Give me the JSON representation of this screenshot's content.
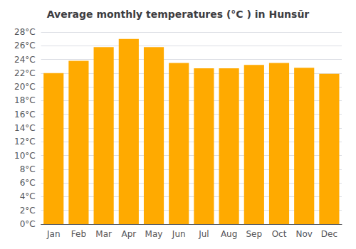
{
  "chart_data": {
    "type": "bar",
    "title": "Average monthly temperatures (°C ) in Hunsūr",
    "categories": [
      "Jan",
      "Feb",
      "Mar",
      "Apr",
      "May",
      "Jun",
      "Jul",
      "Aug",
      "Sep",
      "Oct",
      "Nov",
      "Dec"
    ],
    "values": [
      22.0,
      23.8,
      25.8,
      27.0,
      25.8,
      23.5,
      22.7,
      22.7,
      23.2,
      23.5,
      22.8,
      21.9
    ],
    "color": "#FFAA00",
    "ylim": [
      0,
      28
    ],
    "yticks": [
      {
        "value": 0,
        "label": "0°C"
      },
      {
        "value": 2,
        "label": "2°C"
      },
      {
        "value": 4,
        "label": "4°C"
      },
      {
        "value": 6,
        "label": "6°C"
      },
      {
        "value": 8,
        "label": "8°C"
      },
      {
        "value": 10,
        "label": "10°C"
      },
      {
        "value": 12,
        "label": "12°C"
      },
      {
        "value": 14,
        "label": "14°C"
      },
      {
        "value": 16,
        "label": "16°C"
      },
      {
        "value": 18,
        "label": "18°C"
      },
      {
        "value": 20,
        "label": "20°C"
      },
      {
        "value": 22,
        "label": "22°C"
      },
      {
        "value": 24,
        "label": "24°C"
      },
      {
        "value": 26,
        "label": "26°C"
      },
      {
        "value": 28,
        "label": "28°C"
      }
    ],
    "grid": true
  }
}
